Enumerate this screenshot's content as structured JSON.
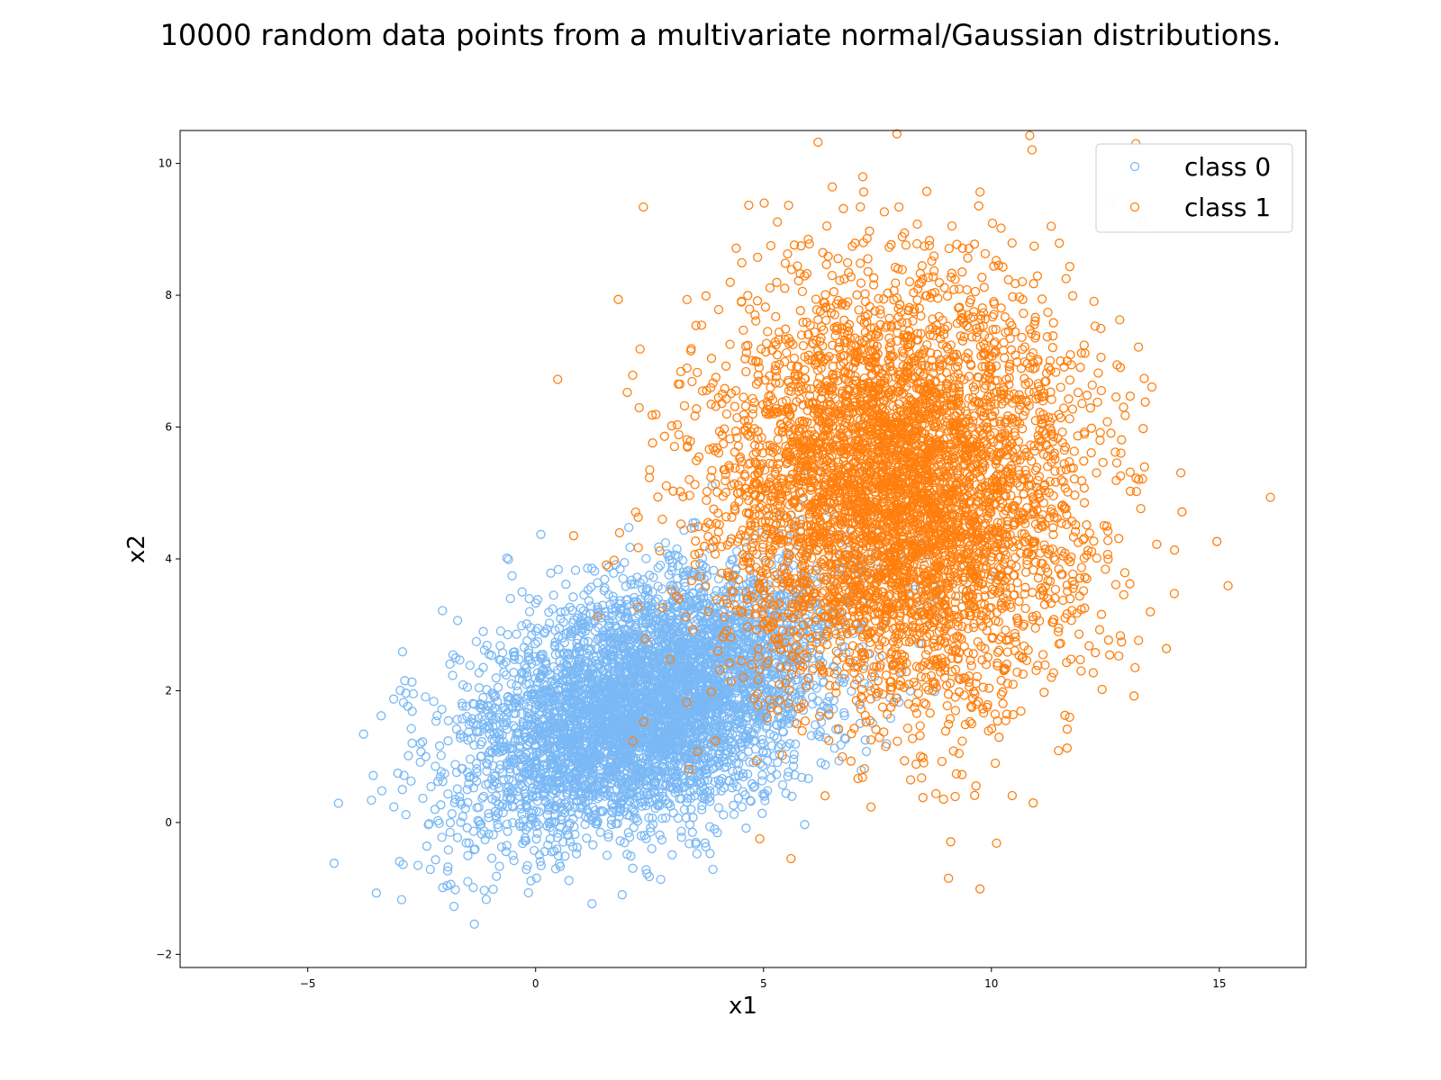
{
  "chart_data": {
    "type": "scatter",
    "title": "10000 random data points from a multivariate normal/Gaussian distributions.",
    "xlabel": "x1",
    "ylabel": "x2",
    "xlim": [
      -7.8,
      16.9
    ],
    "ylim": [
      -2.2,
      10.5
    ],
    "xticks": [
      -5,
      0,
      5,
      10,
      15
    ],
    "yticks": [
      -2,
      0,
      2,
      4,
      6,
      8,
      10
    ],
    "grid": false,
    "legend_position": "top-right",
    "marker": "open-circle",
    "series": [
      {
        "name": "class 0",
        "color": "#7ab8f5",
        "count": 5000,
        "mean": [
          2.5,
          1.8
        ],
        "std": [
          2.0,
          1.0
        ],
        "correlation": 0.45
      },
      {
        "name": "class 1",
        "color": "#ff7f0e",
        "count": 5000,
        "mean": [
          8.0,
          5.0
        ],
        "std": [
          2.0,
          1.6
        ],
        "correlation": 0.0
      }
    ]
  }
}
